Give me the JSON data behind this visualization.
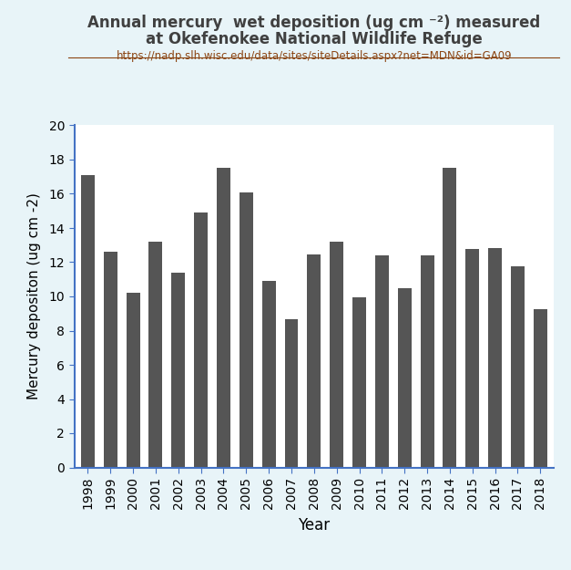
{
  "years": [
    "1998",
    "1999",
    "2000",
    "2001",
    "2002",
    "2003",
    "2004",
    "2005",
    "2006",
    "2007",
    "2008",
    "2009",
    "2010",
    "2011",
    "2012",
    "2013",
    "2014",
    "2015",
    "2016",
    "2017",
    "2018"
  ],
  "values": [
    17.1,
    12.6,
    10.2,
    13.2,
    11.4,
    14.9,
    17.5,
    16.1,
    10.9,
    8.65,
    12.45,
    13.2,
    9.95,
    12.4,
    10.5,
    12.4,
    17.5,
    12.75,
    12.8,
    11.75,
    9.25
  ],
  "bar_color": "#555555",
  "title_line1": "Annual mercury  wet deposition (ug cm ⁻²) measured",
  "title_line2": "at Okefenokee National Wildlife Refuge",
  "url": "https://nadp.slh.wisc.edu/data/sites/siteDetails.aspx?net=MDN&id=GA09",
  "ylabel": "Mercury depositon (ug cm -2)",
  "xlabel": "Year",
  "ylim": [
    0,
    20
  ],
  "yticks": [
    0,
    2,
    4,
    6,
    8,
    10,
    12,
    14,
    16,
    18,
    20
  ],
  "background_color": "#e8f4f8",
  "plot_background": "#ffffff",
  "title_color": "#404040",
  "url_color": "#8B4513",
  "axis_color": "#4472c4"
}
